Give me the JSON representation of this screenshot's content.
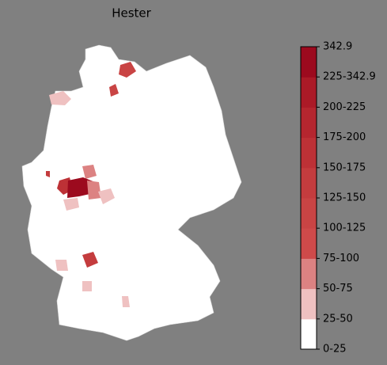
{
  "title": "Hester",
  "legend": {
    "labels": [
      "0-25",
      "25-50",
      "50-75",
      "75-100",
      "100-125",
      "125-150",
      "150-175",
      "175-200",
      "200-225",
      "225-342.9",
      "342.9"
    ],
    "colors": [
      "#ffffff",
      "#efc1c1",
      "#dc8282",
      "#cf4a4a",
      "#c94444",
      "#c43c3e",
      "#bd3136",
      "#b5262f",
      "#ab1a27",
      "#9c0a1e"
    ]
  }
}
